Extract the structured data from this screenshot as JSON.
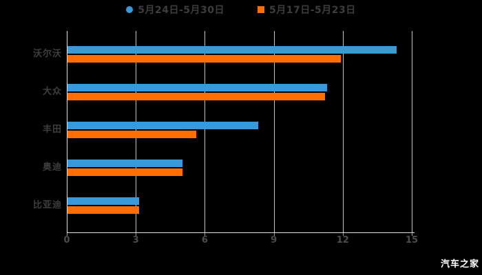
{
  "legend": [
    {
      "label": "5月24日-5月30日",
      "marker": "circle",
      "color": "#3A99D9"
    },
    {
      "label": "5月17日-5月23日",
      "marker": "square",
      "color": "#FF6E00"
    }
  ],
  "watermark": "汽车之家",
  "chart_data": {
    "type": "bar",
    "orientation": "horizontal",
    "title": "",
    "xlabel": "",
    "ylabel": "",
    "categories": [
      "沃尔沃",
      "大众",
      "丰田",
      "奥迪",
      "比亚迪"
    ],
    "series": [
      {
        "name": "5月24日-5月30日",
        "color": "#3A99D9",
        "values": [
          14.3,
          11.3,
          8.3,
          5.0,
          3.1
        ]
      },
      {
        "name": "5月17日-5月23日",
        "color": "#FF6E00",
        "values": [
          11.9,
          11.2,
          5.6,
          5.0,
          3.1
        ]
      }
    ],
    "xlim": [
      0,
      15
    ],
    "xticks": [
      0,
      3,
      6,
      9,
      12,
      15
    ],
    "grid": true,
    "legend_position": "top",
    "background": "#000000",
    "text_color": "#4d4d4d"
  }
}
